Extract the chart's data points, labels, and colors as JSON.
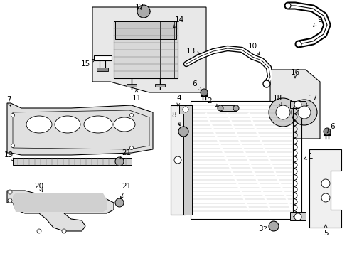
{
  "bg_color": "#ffffff",
  "line_color": "#000000",
  "fig_width": 4.89,
  "fig_height": 3.6,
  "dpi": 100,
  "label_fontsize": 7.5,
  "small_fontsize": 6.5
}
